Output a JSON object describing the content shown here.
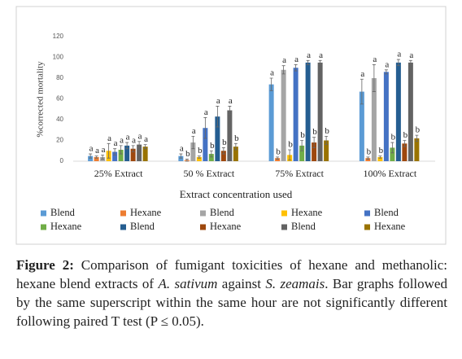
{
  "chart_data": {
    "type": "bar",
    "y_label": "%corrected mortality",
    "x_label": "Extract concentration used",
    "categories": [
      "25% Extract",
      "50 % Extract",
      "75% Extract",
      "100% Extract"
    ],
    "ylim": [
      0,
      120
    ],
    "yticks": [
      0,
      20,
      40,
      60,
      80,
      100,
      120
    ],
    "series": [
      {
        "name": "Blend",
        "color": "#5b9bd5",
        "values": [
          5,
          5,
          74,
          67
        ],
        "errors": [
          2,
          2,
          6,
          12
        ],
        "letters": [
          "a",
          "a",
          "a",
          "a"
        ]
      },
      {
        "name": "Hexane",
        "color": "#ed7d31",
        "values": [
          4,
          1,
          3,
          3
        ],
        "errors": [
          1,
          1,
          1,
          1
        ],
        "letters": [
          "a",
          "b",
          "b",
          "b"
        ]
      },
      {
        "name": "Blend",
        "color": "#a5a5a5",
        "values": [
          4,
          18,
          88,
          80
        ],
        "errors": [
          2,
          6,
          4,
          13
        ],
        "letters": [
          "a",
          "a",
          "a",
          "a"
        ]
      },
      {
        "name": "Hexane",
        "color": "#ffc000",
        "values": [
          10,
          4,
          6,
          4
        ],
        "errors": [
          7,
          1,
          5,
          1
        ],
        "letters": [
          "a",
          "b",
          "b",
          "b"
        ]
      },
      {
        "name": "Blend",
        "color": "#4472c4",
        "values": [
          9,
          32,
          90,
          86
        ],
        "errors": [
          3,
          10,
          3,
          2
        ],
        "letters": [
          "a",
          "a",
          "a",
          "a"
        ]
      },
      {
        "name": "Hexane",
        "color": "#70ad47",
        "values": [
          11,
          7,
          15,
          13
        ],
        "errors": [
          4,
          3,
          5,
          5
        ],
        "letters": [
          "a",
          "b",
          "b",
          "b"
        ]
      },
      {
        "name": "Blend",
        "color": "#255e91",
        "values": [
          15,
          43,
          95,
          95
        ],
        "errors": [
          3,
          10,
          2,
          3
        ],
        "letters": [
          "a",
          "a",
          "a",
          "a"
        ]
      },
      {
        "name": "Hexane",
        "color": "#9e480e",
        "values": [
          12,
          10,
          18,
          17
        ],
        "errors": [
          3,
          3,
          5,
          3
        ],
        "letters": [
          "a",
          "b",
          "b",
          "b"
        ]
      },
      {
        "name": "Blend",
        "color": "#636363",
        "values": [
          16,
          49,
          95,
          95
        ],
        "errors": [
          3,
          4,
          2,
          2
        ],
        "letters": [
          "a",
          "a",
          "a",
          "a"
        ]
      },
      {
        "name": "Hexane",
        "color": "#997300",
        "values": [
          14,
          14,
          20,
          22
        ],
        "errors": [
          2,
          3,
          4,
          3
        ],
        "letters": [
          "a",
          "b",
          "b",
          "b"
        ]
      }
    ]
  },
  "caption": {
    "label": "Figure 2:",
    "text": [
      "Comparison of fumigant toxicities of hexane and methanolic: hexane blend extracts of",
      "A. sativum",
      "against",
      "S. zeamais",
      ". Bar graphs followed by the same superscript within the same hour are not significantly different following paired T test (P ≤ 0.05)."
    ]
  }
}
